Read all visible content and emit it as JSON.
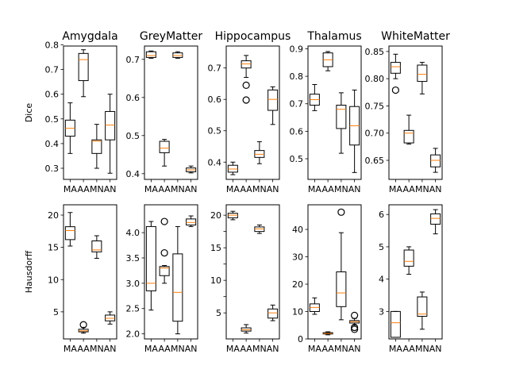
{
  "chart_data": {
    "type": "boxplot",
    "categories": [
      "MA",
      "AA",
      "MN",
      "AN"
    ],
    "row_labels": [
      "Dice",
      "Hausdorff"
    ],
    "panels": [
      {
        "title": "Amygdala",
        "ylabel": "Dice",
        "ylim": [
          0.255,
          0.795
        ],
        "yticks": [
          0.3,
          0.4,
          0.5,
          0.6,
          0.7,
          0.8
        ],
        "yticklabels": [
          "0.3",
          "0.4",
          "0.5",
          "0.6",
          "0.7",
          "0.8"
        ],
        "boxes": [
          {
            "min": 0.36,
            "q1": 0.43,
            "median": 0.462,
            "q3": 0.495,
            "max": 0.565,
            "outliers": []
          },
          {
            "min": 0.59,
            "q1": 0.655,
            "median": 0.74,
            "q3": 0.765,
            "max": 0.78,
            "outliers": []
          },
          {
            "min": 0.3,
            "q1": 0.36,
            "median": 0.41,
            "q3": 0.415,
            "max": 0.478,
            "outliers": []
          },
          {
            "min": 0.28,
            "q1": 0.415,
            "median": 0.475,
            "q3": 0.53,
            "max": 0.6,
            "outliers": []
          }
        ]
      },
      {
        "title": "GreyMatter",
        "ylabel": "",
        "ylim": [
          0.385,
          0.735
        ],
        "yticks": [
          0.4,
          0.5,
          0.6,
          0.7
        ],
        "yticklabels": [
          "0.4",
          "0.5",
          "0.6",
          "0.7"
        ],
        "boxes": [
          {
            "min": 0.703,
            "q1": 0.705,
            "median": 0.71,
            "q3": 0.72,
            "max": 0.722,
            "outliers": []
          },
          {
            "min": 0.42,
            "q1": 0.455,
            "median": 0.467,
            "q3": 0.485,
            "max": 0.49,
            "outliers": []
          },
          {
            "min": 0.703,
            "q1": 0.705,
            "median": 0.71,
            "q3": 0.717,
            "max": 0.72,
            "outliers": []
          },
          {
            "min": 0.402,
            "q1": 0.405,
            "median": 0.41,
            "q3": 0.415,
            "max": 0.42,
            "outliers": []
          }
        ]
      },
      {
        "title": "Hippocampus",
        "ylabel": "",
        "ylim": [
          0.345,
          0.77
        ],
        "yticks": [
          0.4,
          0.5,
          0.6,
          0.7
        ],
        "yticklabels": [
          "0.4",
          "0.5",
          "0.6",
          "0.7"
        ],
        "boxes": [
          {
            "min": 0.36,
            "q1": 0.368,
            "median": 0.378,
            "q3": 0.39,
            "max": 0.4,
            "outliers": []
          },
          {
            "min": 0.67,
            "q1": 0.7,
            "median": 0.713,
            "q3": 0.723,
            "max": 0.74,
            "outliers": [
              0.645,
              0.598
            ]
          },
          {
            "min": 0.395,
            "q1": 0.415,
            "median": 0.425,
            "q3": 0.437,
            "max": 0.465,
            "outliers": []
          },
          {
            "min": 0.52,
            "q1": 0.565,
            "median": 0.6,
            "q3": 0.63,
            "max": 0.64,
            "outliers": []
          }
        ]
      },
      {
        "title": "Thalamus",
        "ylabel": "",
        "ylim": [
          0.425,
          0.91
        ],
        "yticks": [
          0.5,
          0.6,
          0.7,
          0.8,
          0.9
        ],
        "yticklabels": [
          "0.5",
          "0.6",
          "0.7",
          "0.8",
          "0.9"
        ],
        "boxes": [
          {
            "min": 0.675,
            "q1": 0.695,
            "median": 0.715,
            "q3": 0.735,
            "max": 0.77,
            "outliers": []
          },
          {
            "min": 0.82,
            "q1": 0.835,
            "median": 0.86,
            "q3": 0.885,
            "max": 0.89,
            "outliers": []
          },
          {
            "min": 0.52,
            "q1": 0.61,
            "median": 0.68,
            "q3": 0.695,
            "max": 0.74,
            "outliers": []
          },
          {
            "min": 0.45,
            "q1": 0.55,
            "median": 0.62,
            "q3": 0.69,
            "max": 0.75,
            "outliers": []
          }
        ]
      },
      {
        "title": "WhiteMatter",
        "ylabel": "",
        "ylim": [
          0.615,
          0.86
        ],
        "yticks": [
          0.65,
          0.7,
          0.75,
          0.8,
          0.85
        ],
        "yticklabels": [
          "0.65",
          "0.70",
          "0.75",
          "0.80",
          "0.85"
        ],
        "boxes": [
          {
            "min": 0.8,
            "q1": 0.81,
            "median": 0.822,
            "q3": 0.83,
            "max": 0.845,
            "outliers": [
              0.779
            ]
          },
          {
            "min": 0.68,
            "q1": 0.682,
            "median": 0.7,
            "q3": 0.705,
            "max": 0.733,
            "outliers": []
          },
          {
            "min": 0.772,
            "q1": 0.795,
            "median": 0.808,
            "q3": 0.825,
            "max": 0.83,
            "outliers": []
          },
          {
            "min": 0.628,
            "q1": 0.638,
            "median": 0.65,
            "q3": 0.66,
            "max": 0.672,
            "outliers": []
          }
        ]
      },
      {
        "title": "",
        "ylabel": "Hausdorff",
        "ylim": [
          0.8,
          21.6
        ],
        "yticks": [
          5,
          10,
          15,
          20
        ],
        "yticklabels": [
          "5",
          "10",
          "15",
          "20"
        ],
        "boxes": [
          {
            "min": 15.2,
            "q1": 16.2,
            "median": 17.6,
            "q3": 18.2,
            "max": 20.4,
            "outliers": []
          },
          {
            "min": 1.7,
            "q1": 1.9,
            "median": 2.05,
            "q3": 2.3,
            "max": 2.6,
            "outliers": [
              3.0
            ]
          },
          {
            "min": 13.3,
            "q1": 14.3,
            "median": 14.6,
            "q3": 16.0,
            "max": 16.8,
            "outliers": []
          },
          {
            "min": 3.1,
            "q1": 3.6,
            "median": 4.0,
            "q3": 4.5,
            "max": 5.0,
            "outliers": []
          }
        ]
      },
      {
        "title": "",
        "ylabel": "",
        "ylim": [
          1.9,
          4.55
        ],
        "yticks": [
          2.0,
          2.5,
          3.0,
          3.5,
          4.0
        ],
        "yticklabels": [
          "2.0",
          "2.5",
          "3.0",
          "3.5",
          "4.0"
        ],
        "boxes": [
          {
            "min": 2.47,
            "q1": 2.85,
            "median": 3.0,
            "q3": 4.12,
            "max": 4.22,
            "outliers": []
          },
          {
            "min": 3.0,
            "q1": 3.15,
            "median": 3.3,
            "q3": 3.33,
            "max": 3.35,
            "outliers": [
              4.22,
              3.6
            ]
          },
          {
            "min": 2.0,
            "q1": 2.25,
            "median": 2.82,
            "q3": 3.58,
            "max": 4.12,
            "outliers": []
          },
          {
            "min": 4.12,
            "q1": 4.15,
            "median": 4.2,
            "q3": 4.27,
            "max": 4.33,
            "outliers": []
          }
        ]
      },
      {
        "title": "",
        "ylabel": "",
        "ylim": [
          1.0,
          21.6
        ],
        "yticks": [
          5.0,
          7.5,
          10.0,
          12.5,
          15.0,
          17.5,
          20.0
        ],
        "yticklabels": [
          "5",
          "",
          "10",
          "",
          "15",
          "",
          "20"
        ],
        "boxes": [
          {
            "min": 19.3,
            "q1": 19.6,
            "median": 20.0,
            "q3": 20.3,
            "max": 20.6,
            "outliers": []
          },
          {
            "min": 1.9,
            "q1": 2.2,
            "median": 2.4,
            "q3": 2.7,
            "max": 3.2,
            "outliers": []
          },
          {
            "min": 17.2,
            "q1": 17.5,
            "median": 17.9,
            "q3": 18.2,
            "max": 18.5,
            "outliers": []
          },
          {
            "min": 3.8,
            "q1": 4.2,
            "median": 5.0,
            "q3": 5.6,
            "max": 6.2,
            "outliers": []
          }
        ]
      },
      {
        "title": "",
        "ylabel": "",
        "ylim": [
          0.0,
          49.0
        ],
        "yticks": [
          0,
          10,
          20,
          30,
          40
        ],
        "yticklabels": [
          "0",
          "10",
          "20",
          "30",
          "40"
        ],
        "boxes": [
          {
            "min": 9.0,
            "q1": 10.0,
            "median": 11.5,
            "q3": 12.8,
            "max": 15.0,
            "outliers": []
          },
          {
            "min": 1.5,
            "q1": 1.8,
            "median": 2.0,
            "q3": 2.3,
            "max": 2.6,
            "outliers": []
          },
          {
            "min": 7.0,
            "q1": 11.8,
            "median": 16.8,
            "q3": 24.5,
            "max": 38.8,
            "outliers": [
              46.3
            ]
          },
          {
            "min": 5.0,
            "q1": 5.8,
            "median": 6.3,
            "q3": 6.7,
            "max": 7.5,
            "outliers": [
              3.5,
              4.2,
              8.6
            ]
          }
        ]
      },
      {
        "title": "",
        "ylabel": "",
        "ylim": [
          2.15,
          6.3
        ],
        "yticks": [
          3,
          4,
          5,
          6
        ],
        "yticklabels": [
          "3",
          "4",
          "5",
          "6"
        ],
        "boxes": [
          {
            "min": 2.2,
            "q1": 2.2,
            "median": 2.65,
            "q3": 3.0,
            "max": 3.0,
            "outliers": []
          },
          {
            "min": 4.15,
            "q1": 4.4,
            "median": 4.55,
            "q3": 4.9,
            "max": 5.0,
            "outliers": []
          },
          {
            "min": 2.45,
            "q1": 2.85,
            "median": 2.92,
            "q3": 3.45,
            "max": 3.6,
            "outliers": []
          },
          {
            "min": 5.4,
            "q1": 5.7,
            "median": 5.88,
            "q3": 6.02,
            "max": 6.15,
            "outliers": []
          }
        ]
      }
    ]
  }
}
